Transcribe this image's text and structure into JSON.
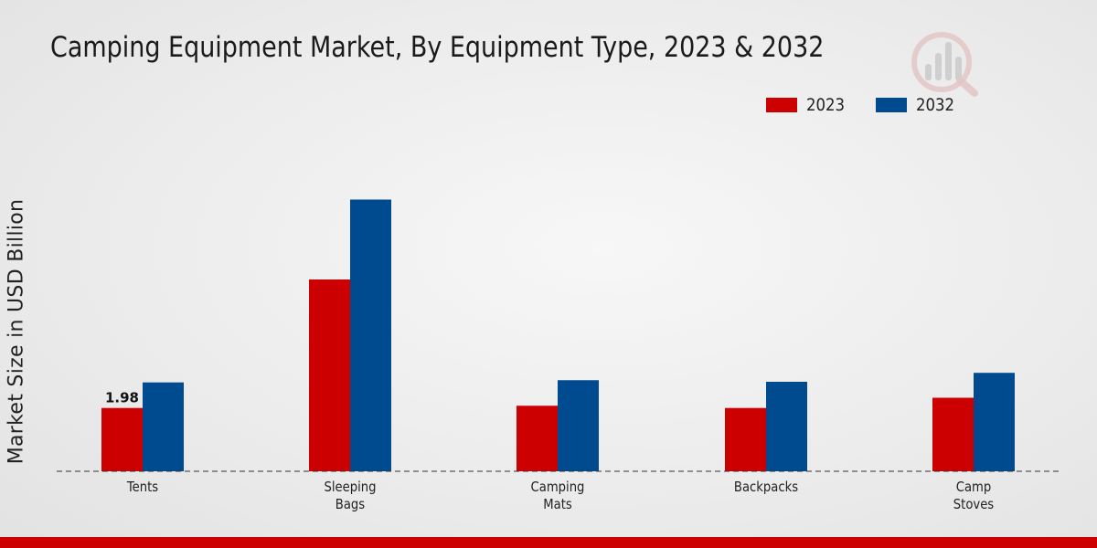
{
  "chart_data": {
    "type": "bar",
    "title": "Camping Equipment Market, By Equipment Type, 2023 & 2032",
    "ylabel": "Market Size in USD Billion",
    "xlabel": "",
    "categories": [
      "Tents",
      "Sleeping\nBags",
      "Camping\nMats",
      "Backpacks",
      "Camp\nStoves"
    ],
    "series": [
      {
        "name": "2023",
        "color": "#cc0000",
        "values": [
          1.98,
          6.0,
          2.05,
          1.98,
          2.3
        ]
      },
      {
        "name": "2032",
        "color": "#004a8f",
        "values": [
          2.78,
          8.5,
          2.85,
          2.8,
          3.08
        ]
      }
    ],
    "data_labels": [
      {
        "series": 0,
        "index": 0,
        "text": "1.98"
      }
    ],
    "ylim": [
      0,
      10
    ],
    "grid": false,
    "legend_position": "top-right"
  }
}
